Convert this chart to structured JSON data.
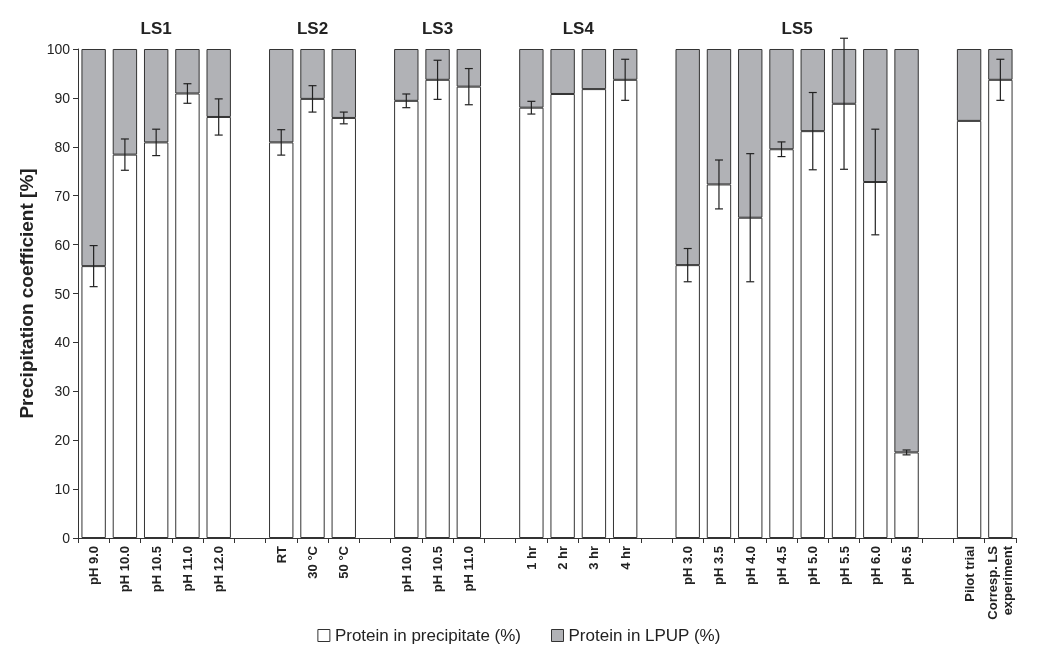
{
  "chart_data": {
    "type": "bar",
    "stacked": true,
    "ylabel": "Precipitation coefficient [%]",
    "categories": [
      "pH 9.0",
      "pH 10.0",
      "pH 10.5",
      "pH 11.0",
      "pH 12.0",
      null,
      "RT",
      "30 °C",
      "50 °C",
      null,
      "pH 10.0",
      "pH 10.5",
      "pH 11.0",
      null,
      "1 hr",
      "2 hr",
      "3 hr",
      "4 hr",
      null,
      "pH 3.0",
      "pH 3.5",
      "pH 4.0",
      "pH 4.5",
      "pH 5.0",
      "pH 5.5",
      "pH 6.0",
      "pH 6.5",
      null,
      "Pilot trial",
      "Corresp. LS experiment"
    ],
    "series": [
      {
        "name": "Protein in precipitate (%)",
        "color": "#ffffff",
        "values": [
          55.6,
          78.4,
          80.9,
          90.9,
          86.1,
          null,
          80.9,
          89.8,
          85.9,
          null,
          89.4,
          93.7,
          92.3,
          null,
          88.0,
          90.8,
          91.8,
          93.7,
          null,
          55.8,
          72.3,
          65.5,
          79.5,
          83.2,
          88.8,
          72.8,
          17.5,
          null,
          85.3,
          93.7
        ],
        "errors": [
          4.2,
          3.2,
          2.7,
          2,
          3.7,
          null,
          2.6,
          2.7,
          1.2,
          null,
          1.4,
          4,
          3.7,
          null,
          1.3,
          null,
          null,
          4.2,
          null,
          3.4,
          5,
          13.1,
          1.5,
          7.9,
          13.4,
          10.8,
          0.5,
          null,
          null,
          4.2
        ]
      },
      {
        "name": "Protein in LPUP (%)",
        "color": "#b1b2b6",
        "values": [
          44.4,
          21.6,
          19.1,
          9.1,
          13.9,
          null,
          19.1,
          10.2,
          14.1,
          null,
          10.6,
          6.3,
          7.7,
          null,
          12.0,
          9.2,
          8.2,
          6.3,
          null,
          44.2,
          27.7,
          34.5,
          20.5,
          16.8,
          11.2,
          27.2,
          82.5,
          null,
          14.7,
          6.3
        ]
      }
    ],
    "ylim": [
      0,
      100
    ],
    "yticks": [
      0,
      10,
      20,
      30,
      40,
      50,
      60,
      70,
      80,
      90,
      100
    ],
    "grid": false,
    "legend": "bottom",
    "annotations": [
      "LS1",
      "LS2",
      "LS3",
      "LS4",
      "LS5"
    ]
  }
}
